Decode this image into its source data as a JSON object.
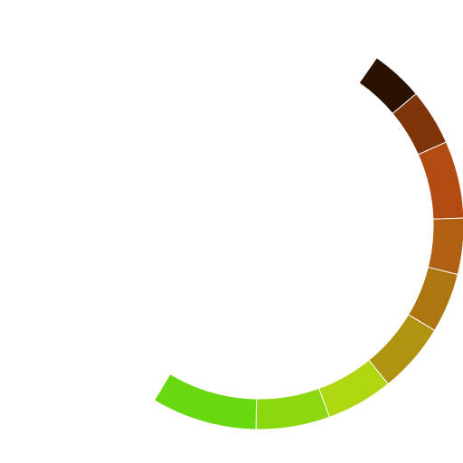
{
  "ring": {
    "segments": [
      {
        "color": "#2a1200"
      },
      {
        "color": "#7e3409"
      },
      {
        "color": "#b24b10"
      },
      {
        "color": "#b06012"
      },
      {
        "color": "#ae7610"
      },
      {
        "color": "#ae9410"
      },
      {
        "color": "#afd710"
      },
      {
        "color": "#8bd810"
      },
      {
        "color": "#68d810"
      }
    ]
  }
}
